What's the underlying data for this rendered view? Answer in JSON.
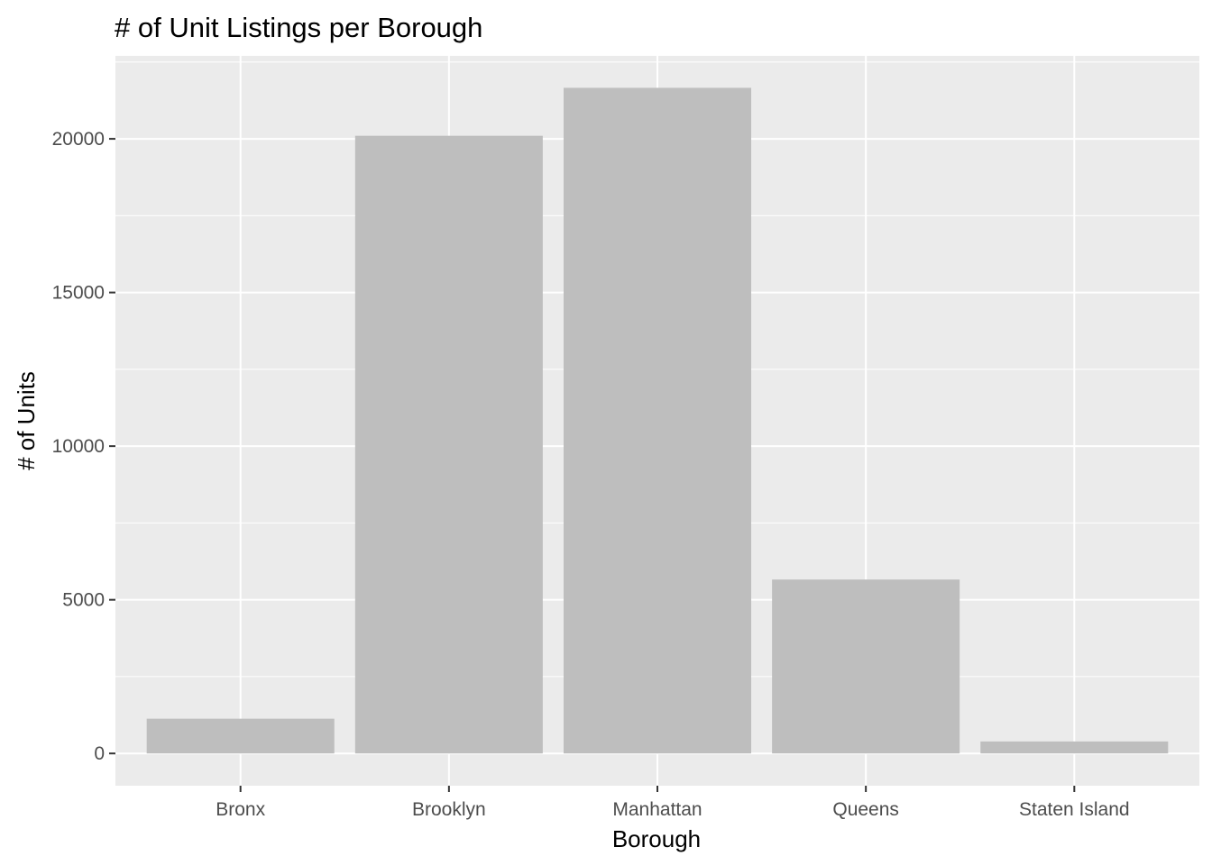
{
  "chart_data": {
    "type": "bar",
    "title": "# of Unit Listings per Borough",
    "xlabel": "Borough",
    "ylabel": "# of Units",
    "categories": [
      "Bronx",
      "Brooklyn",
      "Manhattan",
      "Queens",
      "Staten Island"
    ],
    "values": [
      1130,
      20100,
      21660,
      5660,
      390
    ],
    "ylim": [
      -1050,
      22700
    ],
    "yticks": [
      0,
      5000,
      10000,
      15000,
      20000
    ],
    "ytick_labels": [
      "0",
      "5000",
      "10000",
      "15000",
      "20000"
    ],
    "grid": true,
    "legend": "none",
    "colors": {
      "panel_background": "#ebebeb",
      "grid_major": "#ffffff",
      "bar_fill": "#bebebe",
      "tick_mark": "#333333"
    }
  }
}
